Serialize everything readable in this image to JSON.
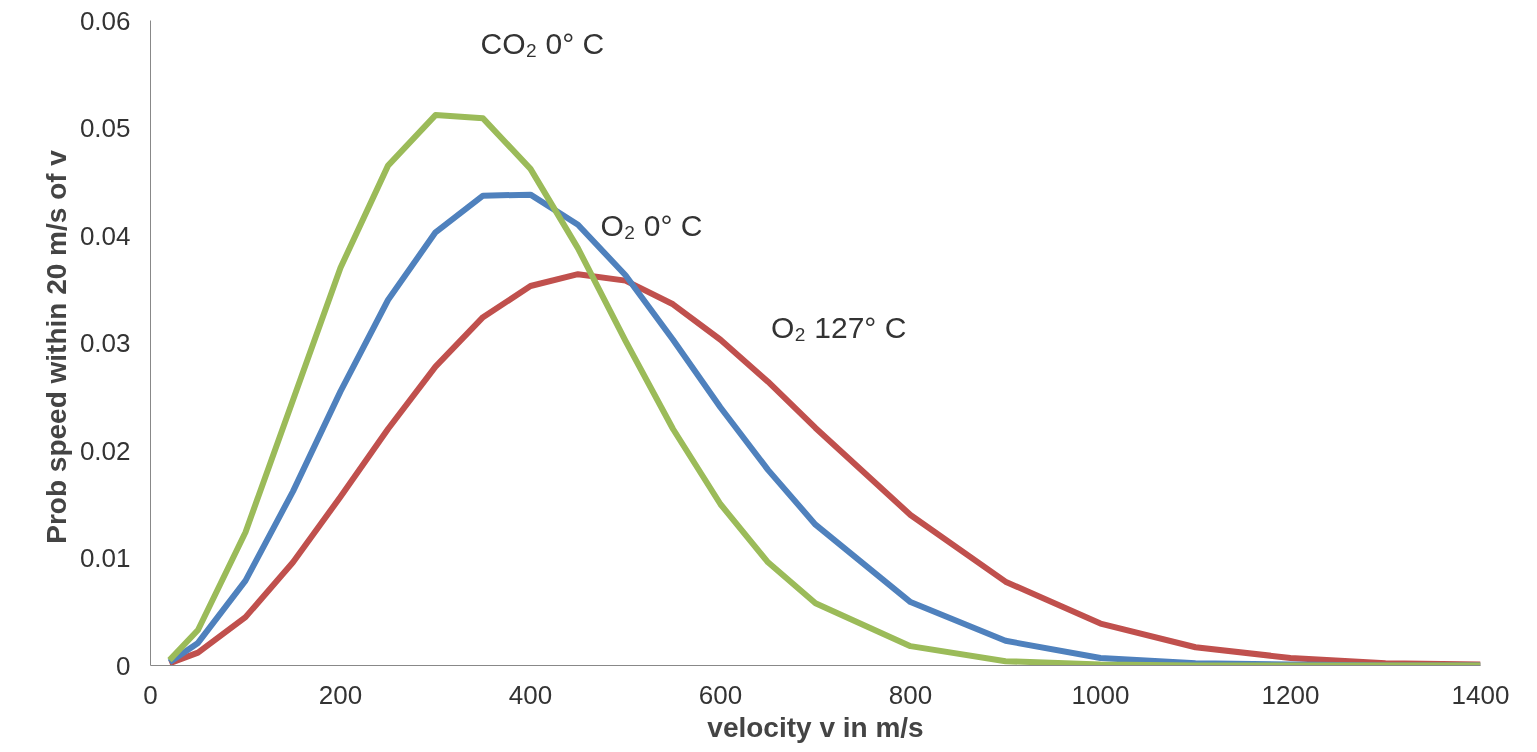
{
  "chart_data": {
    "type": "line",
    "xlabel": "velocity v in m/s",
    "ylabel": "Prob speed within  20 m/s of v",
    "x": [
      20,
      50,
      100,
      150,
      200,
      250,
      300,
      350,
      400,
      450,
      500,
      550,
      600,
      650,
      700,
      800,
      900,
      1000,
      1100,
      1200,
      1300,
      1400
    ],
    "series": [
      {
        "name": "O₂ 127° C",
        "color": "#c0504d",
        "values": [
          0.0002,
          0.0012,
          0.0045,
          0.0096,
          0.0157,
          0.022,
          0.0278,
          0.0324,
          0.0353,
          0.0364,
          0.0358,
          0.0336,
          0.0303,
          0.0264,
          0.0221,
          0.014,
          0.0078,
          0.0039,
          0.0017,
          0.0007,
          0.0002,
          0.0001
        ]
      },
      {
        "name": "O₂ 0° C",
        "color": "#4f81bd",
        "values": [
          0.0003,
          0.0021,
          0.0079,
          0.0162,
          0.0255,
          0.034,
          0.0403,
          0.0437,
          0.0438,
          0.041,
          0.0363,
          0.0303,
          0.024,
          0.0182,
          0.0131,
          0.0059,
          0.0023,
          0.0007,
          0.0002,
          0.0001,
          0,
          0
        ]
      },
      {
        "name": "CO₂ 0° C",
        "color": "#9bbb59",
        "values": [
          0.0005,
          0.0033,
          0.0124,
          0.0247,
          0.037,
          0.0465,
          0.0512,
          0.0509,
          0.0462,
          0.0388,
          0.0302,
          0.022,
          0.015,
          0.0096,
          0.0058,
          0.0018,
          0.0004,
          0.0001,
          0,
          0,
          0,
          0
        ]
      }
    ],
    "xlim": [
      0,
      1400
    ],
    "ylim": [
      0,
      0.06
    ],
    "xticks": [
      0,
      200,
      400,
      600,
      800,
      1000,
      1200,
      1400
    ],
    "yticks": [
      0,
      0.01,
      0.02,
      0.03,
      0.04,
      0.05,
      0.06
    ],
    "grid": false,
    "marker": "none",
    "line_style": "solid"
  }
}
